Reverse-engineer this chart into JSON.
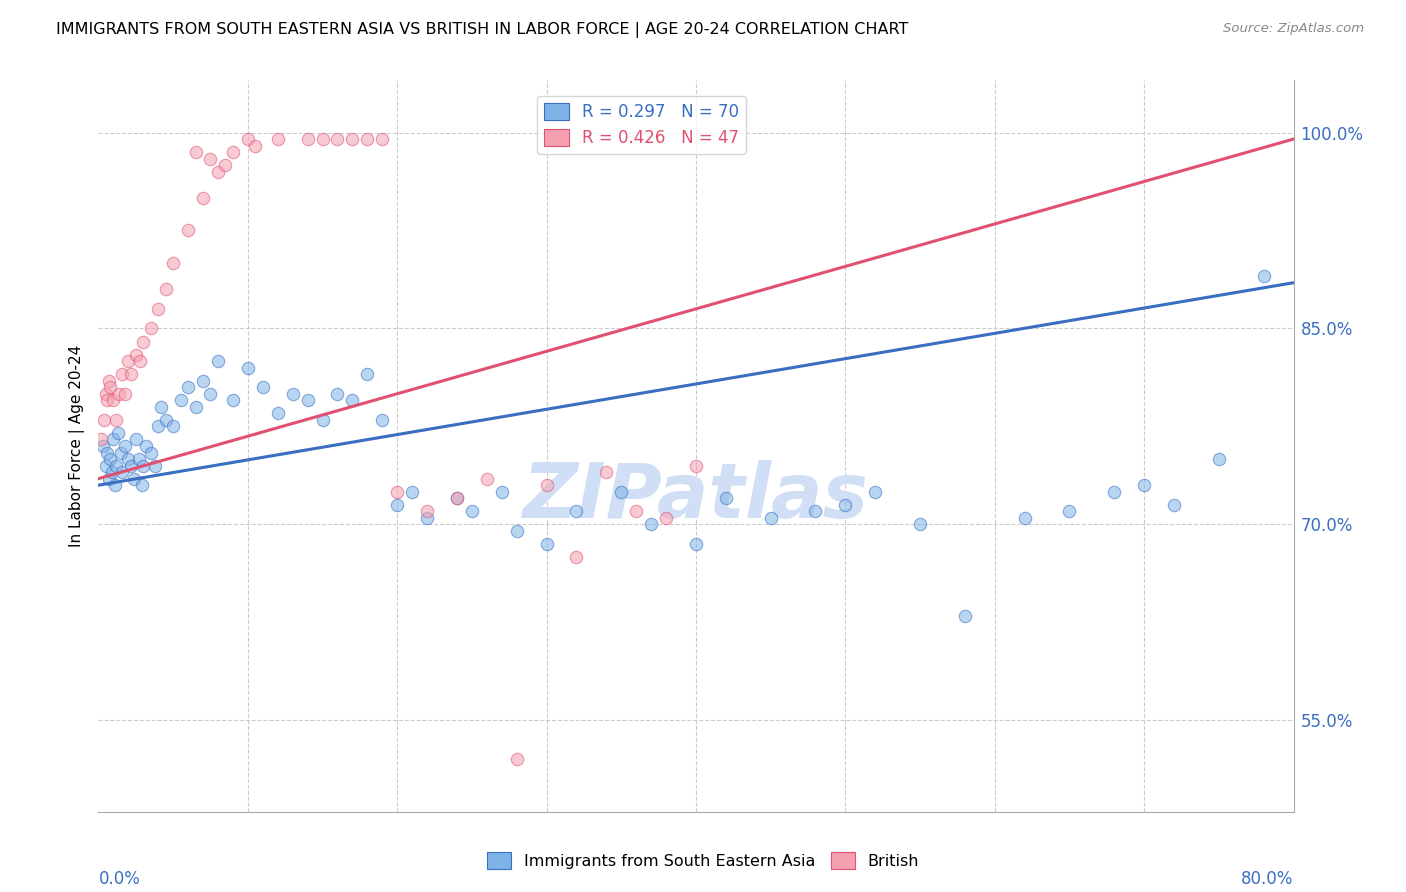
{
  "title": "IMMIGRANTS FROM SOUTH EASTERN ASIA VS BRITISH IN LABOR FORCE | AGE 20-24 CORRELATION CHART",
  "source": "Source: ZipAtlas.com",
  "ylabel": "In Labor Force | Age 20-24",
  "blue_color": "#7EB3E8",
  "pink_color": "#F4A0B0",
  "trendline_blue": "#3A6EC0",
  "trendline_pink": "#E05070",
  "watermark": "ZIPatlas",
  "watermark_color": "#D0DFF5",
  "x_min": 0.0,
  "x_max": 80.0,
  "y_min": 48.0,
  "y_max": 104.0,
  "blue_x": [
    0.3,
    0.5,
    0.6,
    0.7,
    0.8,
    0.9,
    1.0,
    1.1,
    1.2,
    1.3,
    1.5,
    1.6,
    1.8,
    2.0,
    2.2,
    2.4,
    2.5,
    2.7,
    2.9,
    3.0,
    3.2,
    3.5,
    3.8,
    4.0,
    4.2,
    4.5,
    5.0,
    5.5,
    6.0,
    6.5,
    7.0,
    7.5,
    8.0,
    9.0,
    10.0,
    11.0,
    12.0,
    13.0,
    14.0,
    15.0,
    16.0,
    17.0,
    18.0,
    19.0,
    20.0,
    21.0,
    22.0,
    24.0,
    25.0,
    27.0,
    28.0,
    30.0,
    32.0,
    35.0,
    37.0,
    40.0,
    42.0,
    45.0,
    48.0,
    50.0,
    52.0,
    55.0,
    58.0,
    62.0,
    65.0,
    68.0,
    70.0,
    72.0,
    75.0,
    78.0
  ],
  "blue_y": [
    76.0,
    74.5,
    75.5,
    73.5,
    75.0,
    74.0,
    76.5,
    73.0,
    74.5,
    77.0,
    75.5,
    74.0,
    76.0,
    75.0,
    74.5,
    73.5,
    76.5,
    75.0,
    73.0,
    74.5,
    76.0,
    75.5,
    74.5,
    77.5,
    79.0,
    78.0,
    77.5,
    79.5,
    80.5,
    79.0,
    81.0,
    80.0,
    82.5,
    79.5,
    82.0,
    80.5,
    78.5,
    80.0,
    79.5,
    78.0,
    80.0,
    79.5,
    81.5,
    78.0,
    71.5,
    72.5,
    70.5,
    72.0,
    71.0,
    72.5,
    69.5,
    68.5,
    71.0,
    72.5,
    70.0,
    68.5,
    72.0,
    70.5,
    71.0,
    71.5,
    72.5,
    70.0,
    63.0,
    70.5,
    71.0,
    72.5,
    73.0,
    71.5,
    75.0,
    89.0
  ],
  "pink_x": [
    0.2,
    0.4,
    0.5,
    0.6,
    0.7,
    0.8,
    1.0,
    1.2,
    1.4,
    1.6,
    1.8,
    2.0,
    2.2,
    2.5,
    2.8,
    3.0,
    3.5,
    4.0,
    4.5,
    5.0,
    6.0,
    7.0,
    8.0,
    9.0,
    10.0,
    12.0,
    14.0,
    16.0,
    18.0,
    20.0,
    22.0,
    24.0,
    26.0,
    28.0,
    30.0,
    32.0,
    34.0,
    36.0,
    38.0,
    40.0,
    15.0,
    17.0,
    19.0,
    6.5,
    7.5,
    8.5,
    10.5
  ],
  "pink_y": [
    76.5,
    78.0,
    80.0,
    79.5,
    81.0,
    80.5,
    79.5,
    78.0,
    80.0,
    81.5,
    80.0,
    82.5,
    81.5,
    83.0,
    82.5,
    84.0,
    85.0,
    86.5,
    88.0,
    90.0,
    92.5,
    95.0,
    97.0,
    98.5,
    99.5,
    99.5,
    99.5,
    99.5,
    99.5,
    72.5,
    71.0,
    72.0,
    73.5,
    52.0,
    73.0,
    67.5,
    74.0,
    71.0,
    70.5,
    74.5,
    99.5,
    99.5,
    99.5,
    98.5,
    98.0,
    97.5,
    99.0
  ],
  "blue_trend_x0": 0.0,
  "blue_trend_y0": 73.0,
  "blue_trend_x1": 80.0,
  "blue_trend_y1": 88.5,
  "pink_trend_x0": 0.0,
  "pink_trend_y0": 73.5,
  "pink_trend_x1": 80.0,
  "pink_trend_y1": 99.5,
  "yticks": [
    55.0,
    70.0,
    85.0,
    100.0
  ],
  "grid_x": [
    10,
    20,
    30,
    40,
    50,
    60,
    70
  ]
}
